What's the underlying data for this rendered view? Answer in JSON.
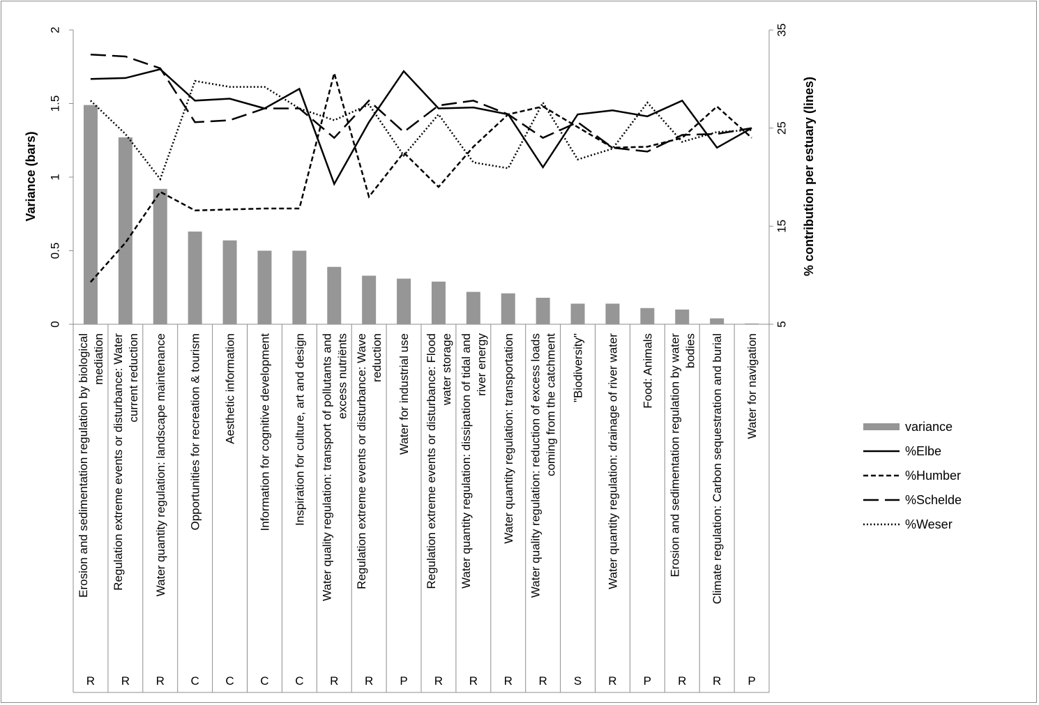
{
  "chart_data": {
    "type": "bar",
    "title": "",
    "ylabel": "Variance (bars)",
    "y2label": "% contribution per  estuary (lines)",
    "ylim": [
      0,
      2
    ],
    "y2lim": [
      5,
      35
    ],
    "yticks": [
      "0",
      "0.5",
      "1",
      "1.5",
      "2"
    ],
    "y2ticks": [
      "5",
      "15",
      "25",
      "35"
    ],
    "legend_position": "right",
    "categories": [
      [
        "Erosion and sedimentation regulation by biological",
        "mediation"
      ],
      [
        "Regulation extreme events or disturbance: Water",
        "current reduction"
      ],
      [
        "Water quantity regulation: landscape maintenance"
      ],
      [
        "Opportunities for recreation & tourism"
      ],
      [
        "Aesthetic information"
      ],
      [
        "Information for cognitive development"
      ],
      [
        "Inspiration for culture, art and design"
      ],
      [
        "Water quality regulation: transport of pollutants and",
        "excess nutriënts"
      ],
      [
        "Regulation extreme events or disturbance: Wave",
        "reduction"
      ],
      [
        "Water for industrial use"
      ],
      [
        "Regulation extreme events or disturbance: Flood",
        "water storage"
      ],
      [
        "Water quantity regulation: dissipation of tidal and",
        "river energy"
      ],
      [
        "Water quantity regulation: transportation"
      ],
      [
        "Water quality regulation: reduction of excess loads",
        "coming from the catchment"
      ],
      [
        "\"Biodiversity\""
      ],
      [
        "Water quantity regulation: drainage of river water"
      ],
      [
        "Food: Animals"
      ],
      [
        "Erosion and sedimentation regulation by water",
        "bodies"
      ],
      [
        "Climate regulation: Carbon sequestration and burial"
      ],
      [
        "Water for navigation"
      ]
    ],
    "codes": [
      "R",
      "R",
      "R",
      "C",
      "C",
      "C",
      "C",
      "R",
      "R",
      "P",
      "R",
      "R",
      "R",
      "R",
      "S",
      "R",
      "P",
      "R",
      "R",
      "P"
    ],
    "bar_series": {
      "name": "variance",
      "color": "#969696",
      "values": [
        1.49,
        1.27,
        0.92,
        0.63,
        0.57,
        0.5,
        0.5,
        0.39,
        0.33,
        0.31,
        0.29,
        0.22,
        0.21,
        0.18,
        0.14,
        0.14,
        0.11,
        0.1,
        0.04,
        0.005
      ]
    },
    "line_series": [
      {
        "name": "%Elbe",
        "dash": "",
        "values": [
          30.0,
          30.1,
          31.0,
          27.8,
          28.0,
          27.0,
          29.0,
          19.3,
          25.6,
          30.8,
          27.0,
          27.1,
          26.4,
          21.0,
          26.4,
          26.8,
          26.2,
          27.8,
          23.0,
          25.0
        ]
      },
      {
        "name": "%Humber",
        "dash": "7,4",
        "values": [
          9.3,
          13.3,
          18.5,
          16.6,
          16.7,
          16.8,
          16.8,
          30.6,
          18.0,
          22.5,
          19.0,
          23.1,
          26.4,
          27.2,
          25.1,
          23.0,
          23.1,
          24.0,
          27.2,
          24.0
        ]
      },
      {
        "name": "%Schelde",
        "dash": "22,9",
        "values": [
          32.5,
          32.3,
          31.1,
          25.6,
          25.8,
          27.0,
          27.0,
          24.0,
          27.8,
          24.6,
          27.3,
          27.8,
          26.4,
          24.0,
          25.6,
          23.0,
          22.6,
          24.3,
          24.4,
          25.0
        ]
      },
      {
        "name": "%Weser",
        "dash": "2,3",
        "values": [
          27.8,
          24.4,
          19.8,
          29.8,
          29.2,
          29.2,
          27.0,
          25.8,
          27.4,
          22.2,
          26.4,
          21.5,
          20.9,
          27.6,
          21.8,
          22.9,
          27.6,
          23.6,
          24.6,
          24.8
        ]
      }
    ]
  }
}
